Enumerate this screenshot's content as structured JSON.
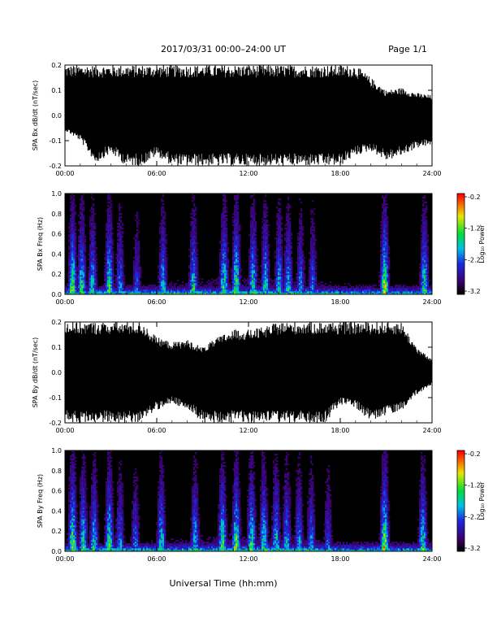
{
  "header": {
    "title": "2017/03/31   00:00–24:00 UT",
    "page": "Page 1/1"
  },
  "footer": {
    "xlabel": "Universal Time (hh:mm)"
  },
  "chart_data": [
    {
      "type": "line",
      "panel": "bx-dbdt",
      "ylabel": "SPA Bx dB/dt (nT/sec)",
      "xlabel": "",
      "x_ticks": [
        "00:00",
        "06:00",
        "12:00",
        "18:00",
        "24:00"
      ],
      "y_ticks": [
        "0.2",
        "0.1",
        "0.0",
        "-0.1",
        "-0.2"
      ],
      "xlim": [
        0,
        24
      ],
      "ylim": [
        -0.2,
        0.2
      ],
      "envelope": {
        "hours": [
          0,
          1,
          2,
          3,
          4,
          5,
          6,
          7,
          8,
          9,
          10,
          11,
          12,
          13,
          14,
          15,
          16,
          17,
          18,
          19,
          20,
          21,
          22,
          23,
          24
        ],
        "upper": [
          0.2,
          0.2,
          0.2,
          0.2,
          0.2,
          0.2,
          0.2,
          0.2,
          0.2,
          0.2,
          0.2,
          0.2,
          0.2,
          0.2,
          0.2,
          0.2,
          0.2,
          0.2,
          0.2,
          0.2,
          0.15,
          0.1,
          0.11,
          0.09,
          0.08
        ],
        "lower": [
          -0.06,
          -0.1,
          -0.19,
          -0.15,
          -0.2,
          -0.2,
          -0.16,
          -0.2,
          -0.2,
          -0.2,
          -0.2,
          -0.2,
          -0.2,
          -0.2,
          -0.2,
          -0.2,
          -0.2,
          -0.2,
          -0.2,
          -0.16,
          -0.14,
          -0.18,
          -0.16,
          -0.13,
          -0.12
        ]
      }
    },
    {
      "type": "heatmap",
      "panel": "bx-spectrogram",
      "ylabel": "SPA Bx Freq (Hz)",
      "xlabel": "",
      "x_ticks": [
        "00:00",
        "06:00",
        "12:00",
        "18:00",
        "24:00"
      ],
      "y_ticks": [
        "1.0",
        "0.8",
        "0.6",
        "0.4",
        "0.2",
        "0.0"
      ],
      "xlim": [
        0,
        24
      ],
      "ylim": [
        0,
        1.0
      ],
      "colorbar": {
        "label": "Log₁₀ Power",
        "ticks": [
          "-0.2",
          "-1.2",
          "-2.2",
          "-3.2"
        ],
        "range": [
          -3.2,
          -0.2
        ]
      },
      "bursts_hours": [
        0.5,
        1.1,
        1.8,
        2.9,
        3.6,
        4.7,
        6.4,
        8.4,
        10.4,
        11.2,
        12.3,
        13.1,
        14.0,
        14.6,
        15.4,
        16.2,
        20.9,
        23.5
      ],
      "burst_strength": [
        0.9,
        0.8,
        0.7,
        0.85,
        0.6,
        0.5,
        0.7,
        0.75,
        0.85,
        0.9,
        0.8,
        0.75,
        0.7,
        0.7,
        0.6,
        0.55,
        1.0,
        0.8
      ]
    },
    {
      "type": "line",
      "panel": "by-dbdt",
      "ylabel": "SPA By dB/dt (nT/sec)",
      "xlabel": "",
      "x_ticks": [
        "00:00",
        "06:00",
        "12:00",
        "18:00",
        "24:00"
      ],
      "y_ticks": [
        "0.2",
        "0.1",
        "0.0",
        "-0.1",
        "-0.2"
      ],
      "xlim": [
        0,
        24
      ],
      "ylim": [
        -0.2,
        0.2
      ],
      "envelope": {
        "hours": [
          0,
          1,
          2,
          3,
          4,
          5,
          6,
          7,
          8,
          9,
          10,
          11,
          12,
          13,
          14,
          15,
          16,
          17,
          18,
          19,
          20,
          21,
          22,
          23,
          24
        ],
        "upper": [
          0.2,
          0.2,
          0.2,
          0.2,
          0.2,
          0.2,
          0.14,
          0.12,
          0.13,
          0.1,
          0.14,
          0.17,
          0.17,
          0.18,
          0.2,
          0.2,
          0.2,
          0.2,
          0.2,
          0.2,
          0.2,
          0.2,
          0.2,
          0.1,
          0.05
        ],
        "lower": [
          -0.2,
          -0.2,
          -0.2,
          -0.2,
          -0.2,
          -0.2,
          -0.15,
          -0.12,
          -0.15,
          -0.2,
          -0.2,
          -0.2,
          -0.2,
          -0.2,
          -0.2,
          -0.2,
          -0.2,
          -0.2,
          -0.13,
          -0.14,
          -0.2,
          -0.17,
          -0.15,
          -0.09,
          -0.05
        ]
      }
    },
    {
      "type": "heatmap",
      "panel": "by-spectrogram",
      "ylabel": "SPA By Freq (Hz)",
      "xlabel": "",
      "x_ticks": [
        "00:00",
        "06:00",
        "12:00",
        "18:00",
        "24:00"
      ],
      "y_ticks": [
        "1.0",
        "0.8",
        "0.6",
        "0.4",
        "0.2",
        "0.0"
      ],
      "xlim": [
        0,
        24
      ],
      "ylim": [
        0,
        1.0
      ],
      "colorbar": {
        "label": "Log₁₀ Power",
        "ticks": [
          "-0.2",
          "-1.2",
          "-2.2",
          "-3.2"
        ],
        "range": [
          -3.2,
          -0.2
        ]
      },
      "bursts_hours": [
        0.5,
        1.2,
        1.9,
        2.9,
        3.6,
        4.6,
        6.3,
        8.5,
        10.3,
        11.2,
        12.2,
        13.0,
        13.8,
        14.5,
        15.3,
        16.1,
        17.2,
        20.9,
        23.4
      ],
      "burst_strength": [
        0.95,
        0.8,
        0.75,
        0.85,
        0.6,
        0.55,
        0.75,
        0.7,
        0.85,
        0.9,
        0.85,
        0.8,
        0.75,
        0.7,
        0.65,
        0.6,
        0.5,
        1.0,
        0.8
      ]
    }
  ]
}
